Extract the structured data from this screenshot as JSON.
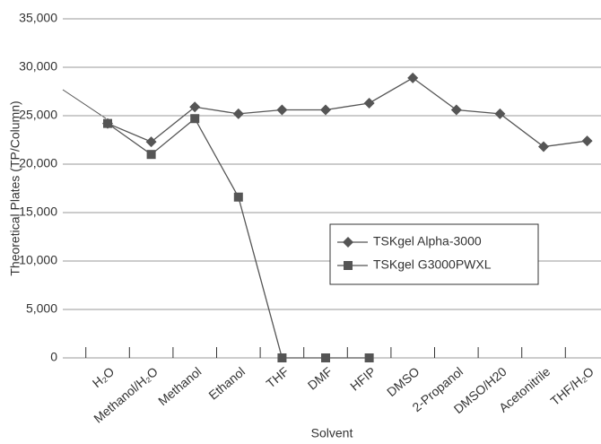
{
  "chart_data": {
    "type": "line",
    "x_label": "Solvent",
    "y_label": "Theoretical Plates (TP/Column)",
    "categories": [
      "H₂O",
      "Methanol/H₂O",
      "Methanol",
      "Ethanol",
      "THF",
      "DMF",
      "HFIP",
      "DMSO",
      "2-Propanol",
      "DMSO/H20",
      "Acetonitrile",
      "THF/H₂O"
    ],
    "series": [
      {
        "name": "TSKgel Alpha-3000",
        "color": "#555555",
        "marker": "diamond",
        "values": [
          24200,
          22300,
          25900,
          25200,
          25600,
          25600,
          26300,
          28900,
          25600,
          25200,
          21800,
          22400
        ]
      },
      {
        "name": "TSKgel G3000PWXL",
        "color": "#555555",
        "marker": "square",
        "values": [
          24200,
          21000,
          24700,
          16600,
          0,
          0,
          0,
          null,
          null,
          null,
          null,
          null
        ]
      }
    ],
    "ylim": [
      0,
      35000
    ],
    "yticks": [
      0,
      {
        "value": 5000,
        "label": "5,000"
      },
      {
        "value": 10000,
        "label": "10,000"
      },
      {
        "value": 15000,
        "label": "15,000"
      },
      {
        "value": 20000,
        "label": "20,000"
      },
      {
        "value": 25000,
        "label": "25,000"
      },
      {
        "value": 30000,
        "label": "30,000"
      },
      {
        "value": 35000,
        "label": "35,000"
      }
    ],
    "grid": true
  }
}
